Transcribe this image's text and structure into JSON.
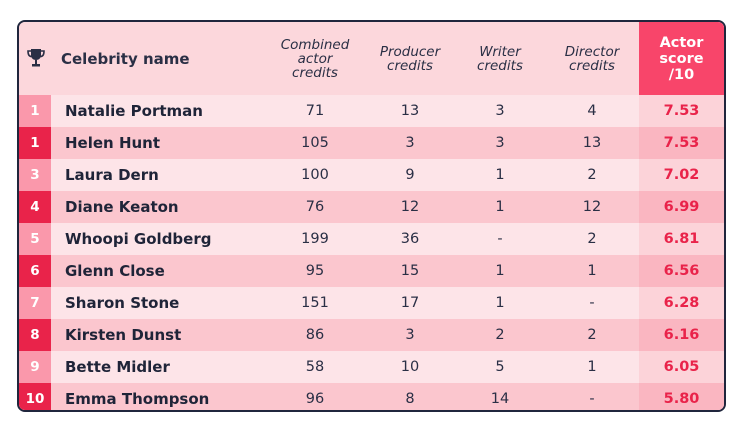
{
  "chart_data": {
    "type": "table",
    "columns": [
      "Celebrity name",
      "Combined\nactor\ncredits",
      "Producer\ncredits",
      "Writer\ncredits",
      "Director\ncredits",
      "Actor\nscore\n/10"
    ],
    "rows": [
      {
        "rank": "1",
        "name": "Natalie Portman",
        "actor": "71",
        "producer": "13",
        "writer": "3",
        "director": "4",
        "score": "7.53"
      },
      {
        "rank": "1",
        "name": "Helen Hunt",
        "actor": "105",
        "producer": "3",
        "writer": "3",
        "director": "13",
        "score": "7.53"
      },
      {
        "rank": "3",
        "name": "Laura Dern",
        "actor": "100",
        "producer": "9",
        "writer": "1",
        "director": "2",
        "score": "7.02"
      },
      {
        "rank": "4",
        "name": "Diane Keaton",
        "actor": "76",
        "producer": "12",
        "writer": "1",
        "director": "12",
        "score": "6.99"
      },
      {
        "rank": "5",
        "name": "Whoopi Goldberg",
        "actor": "199",
        "producer": "36",
        "writer": "-",
        "director": "2",
        "score": "6.81"
      },
      {
        "rank": "6",
        "name": "Glenn Close",
        "actor": "95",
        "producer": "15",
        "writer": "1",
        "director": "1",
        "score": "6.56"
      },
      {
        "rank": "7",
        "name": "Sharon Stone",
        "actor": "151",
        "producer": "17",
        "writer": "1",
        "director": "-",
        "score": "6.28"
      },
      {
        "rank": "8",
        "name": "Kirsten Dunst",
        "actor": "86",
        "producer": "3",
        "writer": "2",
        "director": "2",
        "score": "6.16"
      },
      {
        "rank": "9",
        "name": "Bette Midler",
        "actor": "58",
        "producer": "10",
        "writer": "5",
        "director": "1",
        "score": "6.05"
      },
      {
        "rank": "10",
        "name": "Emma Thompson",
        "actor": "96",
        "producer": "8",
        "writer": "14",
        "director": "-",
        "score": "5.80"
      }
    ]
  },
  "icons": {
    "header": "trophy-icon"
  },
  "colors": {
    "accent": "#f8456a",
    "score_text": "#e9234a",
    "header_bg": "#fcd7dc",
    "row_light": "#fde4e8",
    "row_dark": "#fbc6ce",
    "border": "#20263d"
  }
}
